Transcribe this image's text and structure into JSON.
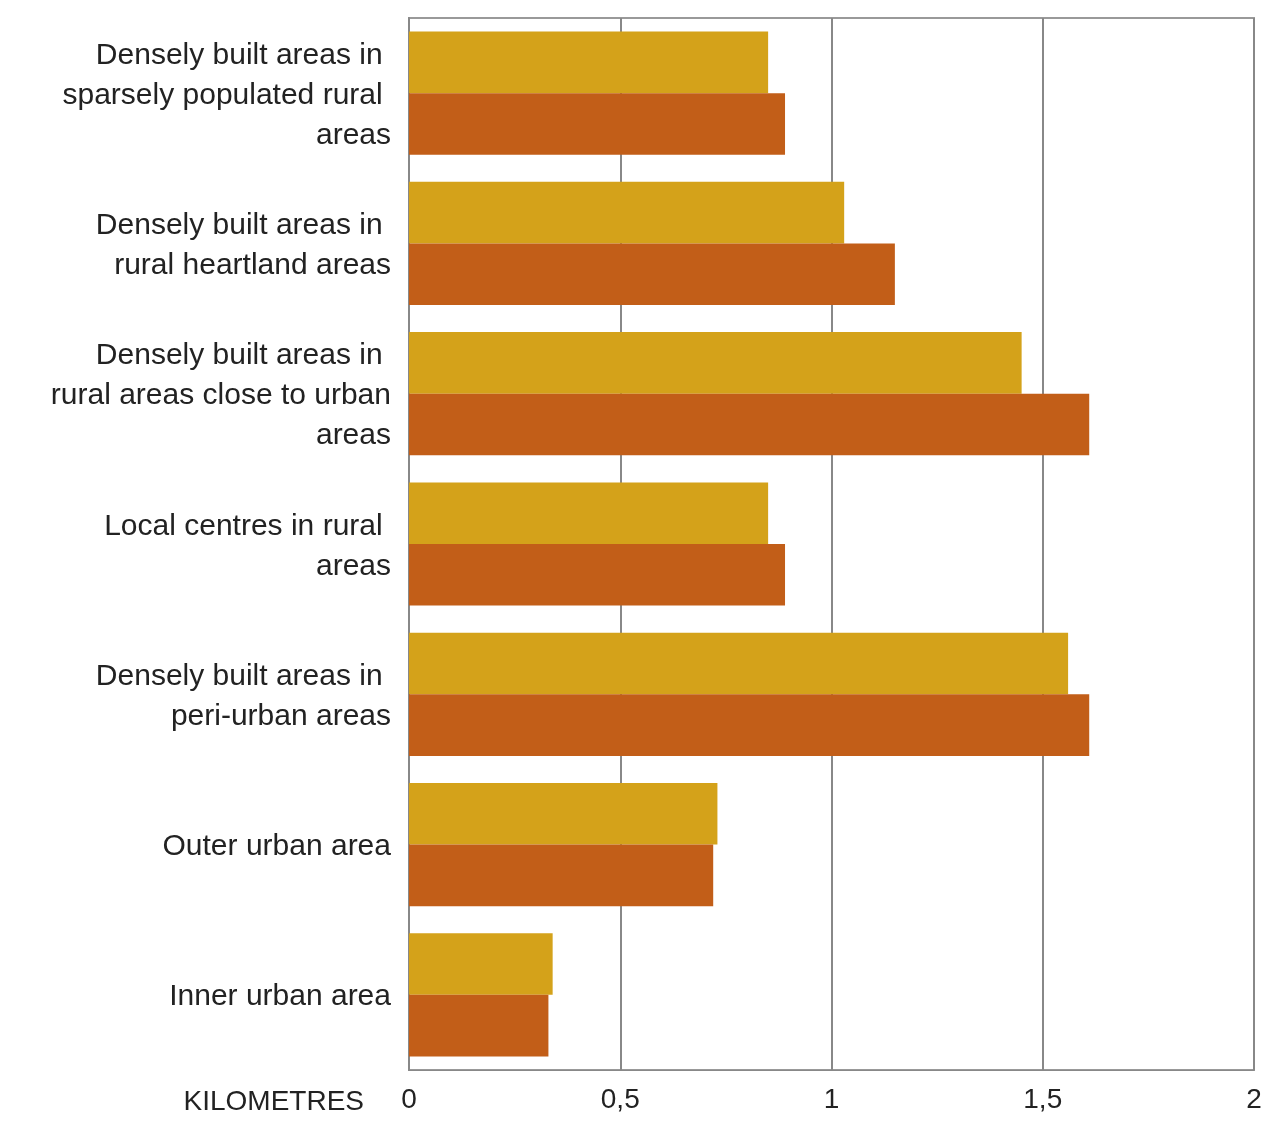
{
  "chart_data": {
    "type": "bar",
    "orientation": "horizontal",
    "xlabel": "KILOMETRES",
    "categories": [
      "Densely built areas in sparsely populated rural areas",
      "Densely built areas in rural heartland areas",
      "Densely built areas in rural areas close to urban areas",
      "Local centres in rural areas",
      "Densely built areas in peri-urban areas",
      "Outer urban area",
      "Inner urban area"
    ],
    "series": [
      {
        "color": "#d4a21a",
        "values": [
          0.85,
          1.03,
          1.45,
          0.85,
          1.56,
          0.73,
          0.34
        ]
      },
      {
        "color": "#c25e18",
        "values": [
          0.89,
          1.15,
          1.61,
          0.89,
          1.61,
          0.72,
          0.33
        ]
      }
    ],
    "xlim": [
      0,
      2
    ],
    "xticks": [
      0,
      {
        "value": 0.5,
        "label": "0,5"
      },
      1,
      {
        "value": 1.5,
        "label": "1,5"
      },
      2
    ],
    "grid": "x"
  }
}
